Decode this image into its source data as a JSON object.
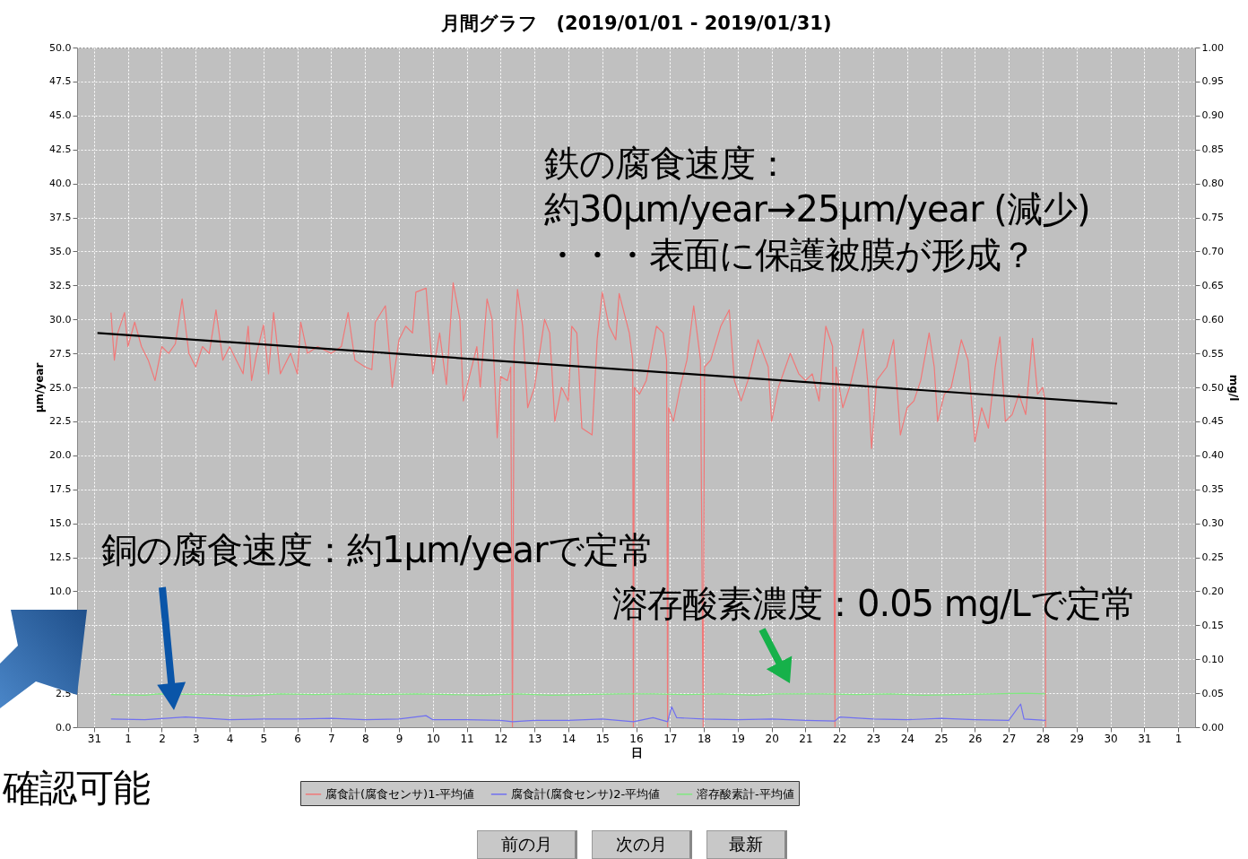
{
  "chart_data": {
    "type": "line",
    "title": "月間グラフ　(2019/01/01 - 2019/01/31)",
    "xlabel": "日",
    "ylabel": "µm/year",
    "y2label": "mg/l",
    "xlim": [
      "2018-12-30T12:00",
      "2019-02-01T12:00"
    ],
    "xticks": [
      {
        "value": "2018-12-31",
        "label": "31"
      },
      {
        "value": "2019-01-01",
        "label": "1"
      },
      {
        "value": "2019-01-02",
        "label": "2"
      },
      {
        "value": "2019-01-03",
        "label": "3"
      },
      {
        "value": "2019-01-04",
        "label": "4"
      },
      {
        "value": "2019-01-05",
        "label": "5"
      },
      {
        "value": "2019-01-06",
        "label": "6"
      },
      {
        "value": "2019-01-07",
        "label": "7"
      },
      {
        "value": "2019-01-08",
        "label": "8"
      },
      {
        "value": "2019-01-09",
        "label": "9"
      },
      {
        "value": "2019-01-10",
        "label": "10"
      },
      {
        "value": "2019-01-11",
        "label": "11"
      },
      {
        "value": "2019-01-12",
        "label": "12"
      },
      {
        "value": "2019-01-13",
        "label": "13"
      },
      {
        "value": "2019-01-14",
        "label": "14"
      },
      {
        "value": "2019-01-15",
        "label": "15"
      },
      {
        "value": "2019-01-16",
        "label": "16"
      },
      {
        "value": "2019-01-17",
        "label": "17"
      },
      {
        "value": "2019-01-18",
        "label": "18"
      },
      {
        "value": "2019-01-19",
        "label": "19"
      },
      {
        "value": "2019-01-20",
        "label": "20"
      },
      {
        "value": "2019-01-21",
        "label": "21"
      },
      {
        "value": "2019-01-22",
        "label": "22"
      },
      {
        "value": "2019-01-23",
        "label": "23"
      },
      {
        "value": "2019-01-24",
        "label": "24"
      },
      {
        "value": "2019-01-25",
        "label": "25"
      },
      {
        "value": "2019-01-26",
        "label": "26"
      },
      {
        "value": "2019-01-27",
        "label": "27"
      },
      {
        "value": "2019-01-28",
        "label": "28"
      },
      {
        "value": "2019-01-29",
        "label": "29"
      },
      {
        "value": "2019-01-30",
        "label": "30"
      },
      {
        "value": "2019-01-31",
        "label": "31"
      },
      {
        "value": "2019-02-01",
        "label": "1"
      }
    ],
    "ylim": [
      0,
      50
    ],
    "yticks": [
      {
        "value": 0,
        "label": "0.0"
      },
      2.5,
      {
        "value": 5,
        "label": null
      },
      {
        "value": 7.5,
        "label": null
      },
      {
        "value": 10,
        "label": "10.0"
      },
      12.5,
      {
        "value": 15,
        "label": "15.0"
      },
      17.5,
      {
        "value": 20,
        "label": "20.0"
      },
      22.5,
      {
        "value": 25,
        "label": "25.0"
      },
      27.5,
      {
        "value": 30,
        "label": "30.0"
      },
      32.5,
      {
        "value": 35,
        "label": "35.0"
      },
      37.5,
      {
        "value": 40,
        "label": "40.0"
      },
      42.5,
      {
        "value": 45,
        "label": "45.0"
      },
      47.5,
      {
        "value": 50,
        "label": "50.0"
      }
    ],
    "y2lim": [
      0,
      1
    ],
    "y2ticks": [
      {
        "value": 0,
        "label": "0.00"
      },
      0.05,
      {
        "value": 0.1,
        "label": "0.10"
      },
      0.15,
      {
        "value": 0.2,
        "label": "0.20"
      },
      0.25,
      {
        "value": 0.3,
        "label": "0.30"
      },
      0.35,
      {
        "value": 0.4,
        "label": "0.40"
      },
      0.45,
      {
        "value": 0.5,
        "label": "0.50"
      },
      0.55,
      {
        "value": 0.6,
        "label": "0.60"
      },
      0.65,
      {
        "value": 0.7,
        "label": "0.70"
      },
      0.75,
      {
        "value": 0.8,
        "label": "0.80"
      },
      0.85,
      {
        "value": 0.9,
        "label": "0.90"
      },
      0.95,
      {
        "value": 1,
        "label": "1.00"
      }
    ],
    "grid": true,
    "legend": "bottom",
    "series": [
      {
        "name": "腐食計(腐食センサ)1-平均値",
        "color": "#f07878",
        "x": [
          "2018-12-31T12:00",
          "2018-12-31T14:24",
          "2018-12-31T16:48",
          "2018-12-31T21:36",
          "2019-01-01T00:00",
          "2019-01-01T04:48",
          "2019-01-01T09:36",
          "2019-01-01T14:24",
          "2019-01-01T19:12",
          "2019-01-02T00:00",
          "2019-01-02T04:48",
          "2019-01-02T09:36",
          "2019-01-02T14:24",
          "2019-01-02T19:12",
          "2019-01-03T00:00",
          "2019-01-03T04:48",
          "2019-01-03T09:36",
          "2019-01-03T14:24",
          "2019-01-03T19:12",
          "2019-01-04T00:00",
          "2019-01-04T04:48",
          "2019-01-04T09:36",
          "2019-01-04T13:12",
          "2019-01-04T15:36",
          "2019-01-04T19:12",
          "2019-01-05T00:00",
          "2019-01-05T03:36",
          "2019-01-05T07:12",
          "2019-01-05T12:00",
          "2019-01-05T19:12",
          "2019-01-06T00:00",
          "2019-01-06T02:24",
          "2019-01-06T07:12",
          "2019-01-06T14:24",
          "2019-01-07T00:00",
          "2019-01-07T07:12",
          "2019-01-07T12:00",
          "2019-01-07T16:48",
          "2019-01-08T00:00",
          "2019-01-08T04:48",
          "2019-01-08T07:12",
          "2019-01-08T14:24",
          "2019-01-08T19:12",
          "2019-01-09T00:00",
          "2019-01-09T04:48",
          "2019-01-09T09:36",
          "2019-01-09T12:00",
          "2019-01-09T19:12",
          "2019-01-10T00:00",
          "2019-01-10T04:48",
          "2019-01-10T09:36",
          "2019-01-10T14:24",
          "2019-01-10T19:12",
          "2019-01-10T21:36",
          "2019-01-11T02:24",
          "2019-01-11T07:12",
          "2019-01-11T09:36",
          "2019-01-11T14:24",
          "2019-01-11T18:00",
          "2019-01-11T21:36",
          "2019-01-12T00:00",
          "2019-01-12T04:48",
          "2019-01-12T07:12",
          "2019-01-12T08:24",
          "2019-01-12T09:36",
          "2019-01-12T12:00",
          "2019-01-12T15:36",
          "2019-01-12T19:12",
          "2019-01-13T00:00",
          "2019-01-13T07:12",
          "2019-01-13T10:48",
          "2019-01-13T14:24",
          "2019-01-13T19:12",
          "2019-01-14T00:00",
          "2019-01-14T02:24",
          "2019-01-14T06:00",
          "2019-01-14T09:36",
          "2019-01-14T16:48",
          "2019-01-14T20:24",
          "2019-01-15T00:00",
          "2019-01-15T04:48",
          "2019-01-15T09:36",
          "2019-01-15T12:00",
          "2019-01-15T19:12",
          "2019-01-15T21:36",
          "2019-01-15T22:05",
          "2019-01-15T22:48",
          "2019-01-16T02:24",
          "2019-01-16T07:12",
          "2019-01-16T14:24",
          "2019-01-16T19:12",
          "2019-01-16T21:36",
          "2019-01-16T22:19",
          "2019-01-16T23:02",
          "2019-01-17T02:24",
          "2019-01-17T07:12",
          "2019-01-17T12:00",
          "2019-01-17T16:48",
          "2019-01-17T21:36",
          "2019-01-17T23:31",
          "2019-01-18T00:29",
          "2019-01-18T04:48",
          "2019-01-18T12:00",
          "2019-01-18T18:00",
          "2019-01-18T21:36",
          "2019-01-19T02:24",
          "2019-01-19T07:12",
          "2019-01-19T14:24",
          "2019-01-19T21:36",
          "2019-01-20T00:00",
          "2019-01-20T04:48",
          "2019-01-20T13:12",
          "2019-01-20T19:12",
          "2019-01-21T00:00",
          "2019-01-21T04:48",
          "2019-01-21T09:36",
          "2019-01-21T14:24",
          "2019-01-21T19:12",
          "2019-01-21T20:53",
          "2019-01-21T21:36",
          "2019-01-22T02:24",
          "2019-01-22T07:12",
          "2019-01-22T12:00",
          "2019-01-22T16:48",
          "2019-01-22T20:24",
          "2019-01-22T22:48",
          "2019-01-23T02:24",
          "2019-01-23T09:36",
          "2019-01-23T14:24",
          "2019-01-23T19:12",
          "2019-01-24T00:00",
          "2019-01-24T04:48",
          "2019-01-24T09:36",
          "2019-01-24T15:36",
          "2019-01-24T19:12",
          "2019-01-24T21:36",
          "2019-01-25T02:24",
          "2019-01-25T07:12",
          "2019-01-25T14:24",
          "2019-01-25T19:12",
          "2019-01-26T00:00",
          "2019-01-26T04:48",
          "2019-01-26T09:36",
          "2019-01-26T14:24",
          "2019-01-26T17:46",
          "2019-01-26T21:36",
          "2019-01-27T02:24",
          "2019-01-27T07:12",
          "2019-01-27T12:00",
          "2019-01-27T16:48",
          "2019-01-27T20:24",
          "2019-01-28T00:00",
          "2019-01-28T01:41",
          "2019-01-28T02:10"
        ],
        "values": [
          30.5,
          27.0,
          29.0,
          30.5,
          28.0,
          29.8,
          28.0,
          27.0,
          25.5,
          28.0,
          27.5,
          28.2,
          31.5,
          27.5,
          26.5,
          28.0,
          27.5,
          30.7,
          27.0,
          28.0,
          27.0,
          26.0,
          29.5,
          25.5,
          27.5,
          29.6,
          26.0,
          30.5,
          26.0,
          27.5,
          26.0,
          29.8,
          27.5,
          28.0,
          27.5,
          28.0,
          30.5,
          27.0,
          26.5,
          26.3,
          29.8,
          31.0,
          25.0,
          28.5,
          29.5,
          29.0,
          32.0,
          32.3,
          26.0,
          29.0,
          25.2,
          32.7,
          30.0,
          24.0,
          26.0,
          28.0,
          25.0,
          31.5,
          30.0,
          21.3,
          25.8,
          25.5,
          26.5,
          0,
          28.0,
          32.2,
          29.5,
          23.5,
          25.0,
          30.0,
          29.0,
          22.5,
          25.0,
          24.0,
          29.5,
          29.0,
          22.0,
          21.5,
          28.5,
          32.0,
          29.5,
          28.5,
          31.9,
          29.0,
          27.0,
          0,
          25.0,
          24.5,
          25.5,
          29.5,
          29.0,
          27.0,
          0,
          23.5,
          22.5,
          25.0,
          27.0,
          31.0,
          27.0,
          0,
          26.5,
          27.0,
          29.5,
          30.7,
          25.5,
          24.0,
          25.5,
          28.5,
          26.5,
          22.5,
          25.0,
          27.5,
          26.0,
          25.5,
          26.0,
          24.0,
          29.5,
          28.0,
          0,
          26.5,
          23.5,
          25.0,
          27.0,
          29.3,
          25.0,
          20.5,
          25.5,
          26.5,
          28.5,
          21.5,
          23.5,
          24.0,
          25.5,
          29.0,
          26.5,
          22.5,
          24.5,
          25.0,
          28.5,
          27.0,
          21.0,
          23.5,
          22.0,
          26.5,
          28.7,
          22.5,
          23.0,
          24.5,
          23.0,
          28.6,
          24.5,
          25.0,
          24.0,
          0
        ]
      },
      {
        "name": "腐食計(腐食センサ)2-平均値",
        "color": "#7070f0",
        "x": [
          "2018-12-31T12:00",
          "2019-01-01T12:00",
          "2019-01-02T16:48",
          "2019-01-04T00:00",
          "2019-01-05T00:00",
          "2019-01-06T00:00",
          "2019-01-07T00:00",
          "2019-01-08T00:00",
          "2019-01-09T00:00",
          "2019-01-09T19:12",
          "2019-01-10T00:00",
          "2019-01-11T00:00",
          "2019-01-12T00:00",
          "2019-01-12T08:24",
          "2019-01-13T00:00",
          "2019-01-14T00:00",
          "2019-01-15T00:00",
          "2019-01-15T22:05",
          "2019-01-16T12:00",
          "2019-01-16T22:19",
          "2019-01-17T01:12",
          "2019-01-17T04:48",
          "2019-01-18T00:00",
          "2019-01-19T00:00",
          "2019-01-20T00:00",
          "2019-01-21T00:00",
          "2019-01-21T20:53",
          "2019-01-22T00:00",
          "2019-01-23T00:00",
          "2019-01-24T00:00",
          "2019-01-25T00:00",
          "2019-01-26T00:00",
          "2019-01-27T00:00",
          "2019-01-27T08:24",
          "2019-01-27T10:48",
          "2019-01-28T02:10"
        ],
        "values": [
          0.6,
          0.55,
          0.75,
          0.55,
          0.6,
          0.6,
          0.65,
          0.55,
          0.6,
          0.85,
          0.55,
          0.55,
          0.5,
          0.4,
          0.5,
          0.5,
          0.6,
          0.4,
          0.7,
          0.4,
          1.5,
          0.7,
          0.6,
          0.55,
          0.6,
          0.5,
          0.45,
          0.75,
          0.6,
          0.55,
          0.65,
          0.55,
          0.5,
          1.7,
          0.6,
          0.5
        ]
      },
      {
        "name": "溶存酸素計-平均値",
        "color": "#80e880",
        "axis": "y2",
        "x": [
          "2018-12-31T12:00",
          "2019-01-01T12:00",
          "2019-01-01T21:36",
          "2019-01-03T12:00",
          "2019-01-04T12:00",
          "2019-01-05T12:00",
          "2019-01-06T12:00",
          "2019-01-07T12:00",
          "2019-01-08T12:00",
          "2019-01-09T12:00",
          "2019-01-10T12:00",
          "2019-01-11T12:00",
          "2019-01-12T12:00",
          "2019-01-13T12:00",
          "2019-01-14T12:00",
          "2019-01-15T12:00",
          "2019-01-16T12:00",
          "2019-01-17T12:00",
          "2019-01-18T12:00",
          "2019-01-19T12:00",
          "2019-01-20T02:24",
          "2019-01-21T12:00",
          "2019-01-22T12:00",
          "2019-01-23T12:00",
          "2019-01-24T12:00",
          "2019-01-25T12:00",
          "2019-01-26T12:00",
          "2019-01-27T12:00",
          "2019-01-28T02:10"
        ],
        "values": [
          0.048,
          0.047,
          0.049,
          0.048,
          0.046,
          0.049,
          0.048,
          0.049,
          0.048,
          0.049,
          0.048,
          0.047,
          0.049,
          0.047,
          0.048,
          0.049,
          0.049,
          0.048,
          0.049,
          0.047,
          0.049,
          0.049,
          0.048,
          0.049,
          0.047,
          0.048,
          0.049,
          0.05,
          0.049
        ]
      },
      {
        "type": "line",
        "color": "#000000",
        "x": [
          "2018-12-31T02:24",
          "2019-01-30T04:48"
        ],
        "values": [
          29.0,
          23.8
        ]
      }
    ],
    "annotations": [
      "鉄の腐食速度：",
      "約30µm/year→25µm/year (減少)",
      "・・・表面に保護被膜が形成？",
      "銅の腐食速度：約1µm/yearで定常",
      "溶存酸素濃度：0.05 mg/Lで定常",
      "確認可能",
      "前の月",
      "次の月",
      "最新"
    ]
  }
}
